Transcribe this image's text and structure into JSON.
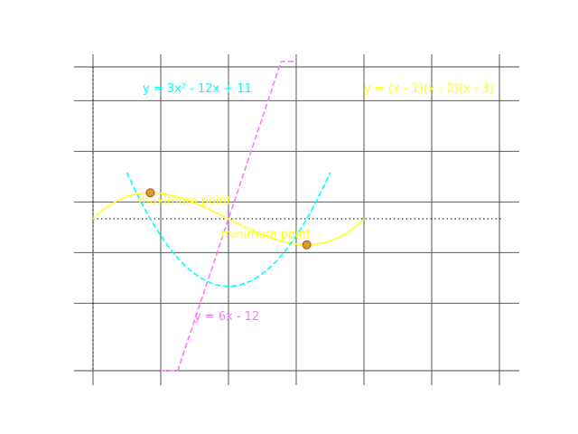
{
  "chart_data": {
    "type": "line",
    "title": "",
    "xlabel": "",
    "ylabel": "",
    "xlim": [
      1,
      4.3
    ],
    "ylim": [
      -2,
      2.4
    ],
    "grid": true,
    "x_gridlines": [
      1,
      1.5,
      2,
      2.5,
      3,
      3.5,
      4
    ],
    "y_gridlines": [
      -2,
      -1.25,
      -0.5,
      0.25,
      1,
      1.75,
      2.5
    ],
    "reference_lines": [
      {
        "orientation": "horizontal",
        "y": 0,
        "style": "dotted",
        "color": "#000000"
      },
      {
        "orientation": "vertical",
        "x": 1,
        "style": "dotted",
        "color": "#000000"
      }
    ],
    "series": [
      {
        "name": "y = (x - 1)(x - 2)(x - 3)",
        "style": "solid",
        "color": "#ffff22",
        "function": "cubic",
        "x_range": [
          1,
          3.0
        ]
      },
      {
        "name": "y = 3x² - 12x + 11",
        "style": "dashed",
        "color": "#00ffff",
        "function": "quadratic",
        "x_range": [
          1.25,
          2.75
        ]
      },
      {
        "name": "y = 6x - 12",
        "style": "dashed",
        "color": "#ff77ff",
        "function": "linear",
        "x_range": [
          1.5,
          2.5
        ]
      }
    ],
    "points": [
      {
        "label": "maximum point",
        "x": 1.4226,
        "y": 0.3849,
        "color": "#d4a020"
      },
      {
        "label": "minimum point",
        "x": 2.5774,
        "y": -0.3849,
        "color": "#d4a020"
      }
    ],
    "annotations": [
      {
        "text": "y = 3x² - 12x + 11",
        "color": "#00ffff"
      },
      {
        "text": "y = (x - 1)(x - 2)(x - 3)",
        "color": "#ffff22"
      },
      {
        "text": "y = 6x - 12",
        "color": "#ff77ff"
      },
      {
        "text": "maximum point",
        "color": "#ffff22"
      },
      {
        "text": "minimum point",
        "color": "#ffff22"
      }
    ]
  }
}
